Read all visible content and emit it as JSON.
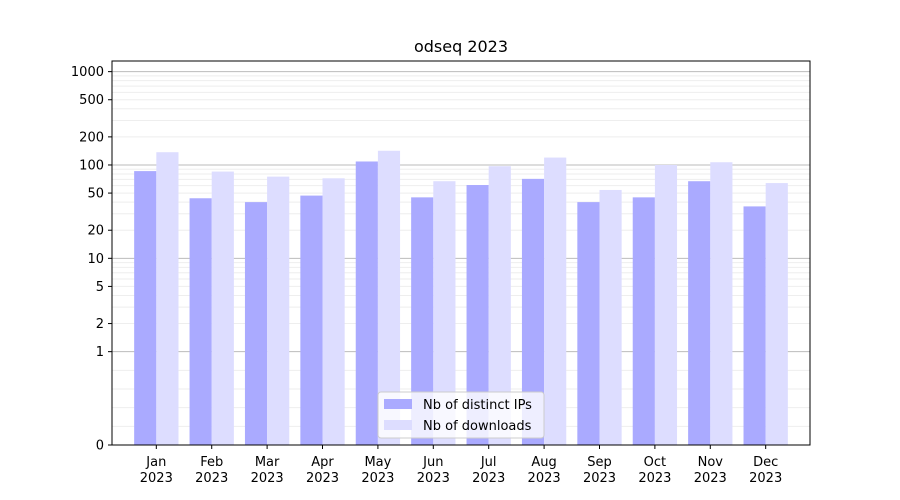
{
  "chart_data": {
    "type": "bar",
    "title": "odseq 2023",
    "xlabel": "",
    "ylabel": "",
    "scale": "symlog",
    "ylim": [
      0,
      1300
    ],
    "yticks": [
      0,
      1,
      2,
      5,
      10,
      20,
      50,
      100,
      200,
      500,
      1000
    ],
    "ytick_labels": [
      "0",
      "1",
      "2",
      "5",
      "10",
      "20",
      "50",
      "100",
      "200",
      "500",
      "1000"
    ],
    "grid": true,
    "legend_placement": "bottom-center",
    "categories": [
      "Jan",
      "Feb",
      "Mar",
      "Apr",
      "May",
      "Jun",
      "Jul",
      "Aug",
      "Sep",
      "Oct",
      "Nov",
      "Dec"
    ],
    "year_labels": [
      "2023",
      "2023",
      "2023",
      "2023",
      "2023",
      "2023",
      "2023",
      "2023",
      "2023",
      "2023",
      "2023",
      "2023"
    ],
    "series": [
      {
        "name": "Nb of distinct IPs",
        "color": "#aaaaff",
        "values": [
          86,
          44,
          40,
          47,
          109,
          45,
          61,
          71,
          40,
          45,
          67,
          36
        ]
      },
      {
        "name": "Nb of downloads",
        "color": "#ddddff",
        "values": [
          137,
          85,
          75,
          72,
          142,
          67,
          97,
          120,
          54,
          100,
          107,
          64
        ]
      }
    ]
  }
}
